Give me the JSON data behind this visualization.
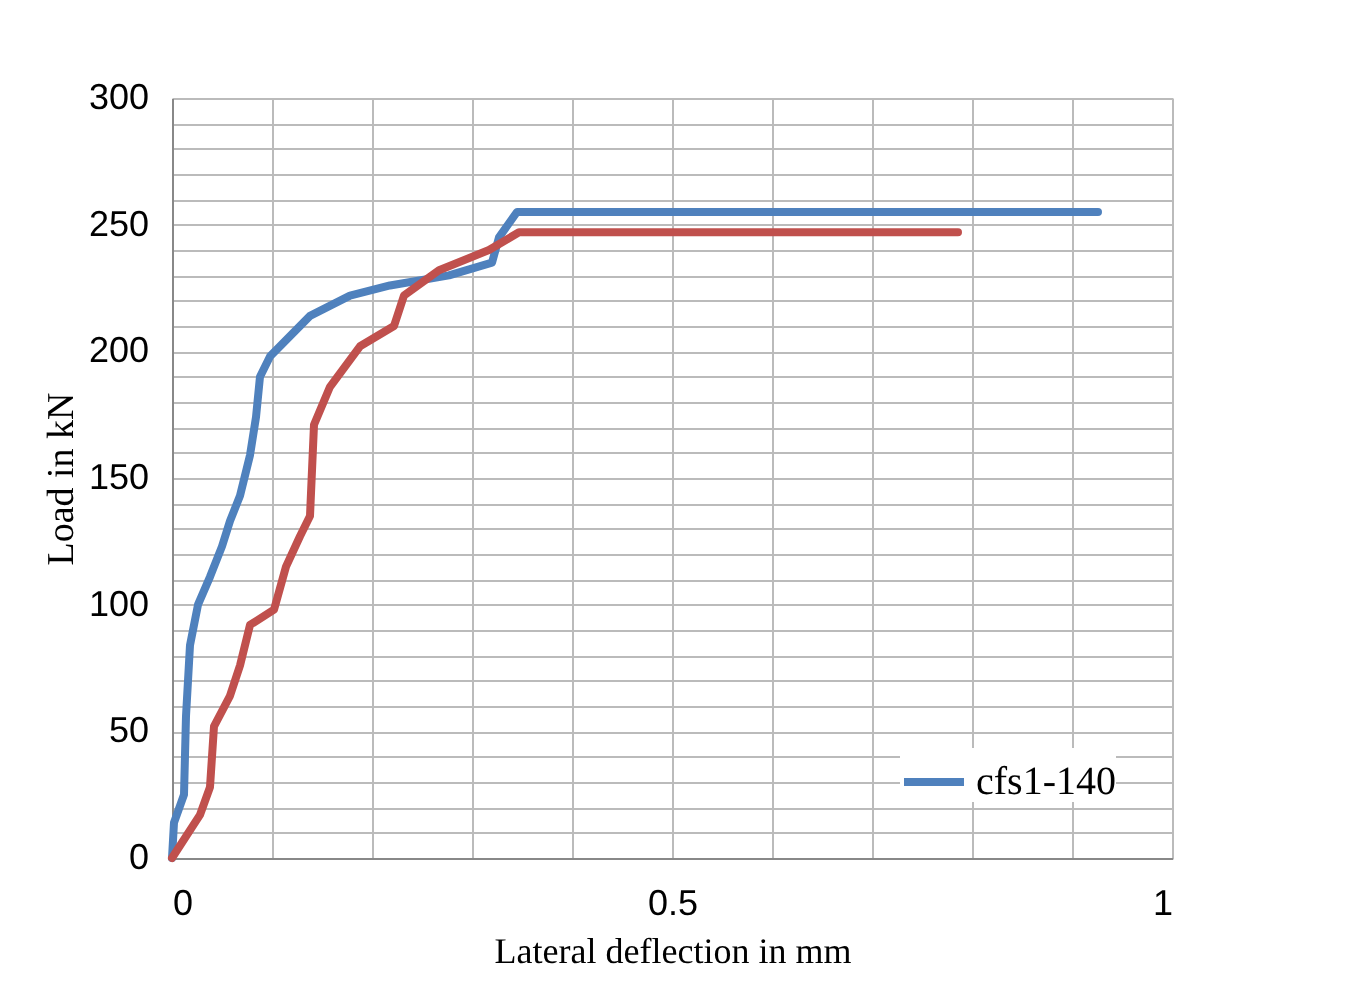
{
  "chart_data": {
    "type": "line",
    "xlabel": "Lateral deflection in mm",
    "ylabel": "Load in kN",
    "xlim": [
      0,
      1
    ],
    "ylim": [
      0,
      300
    ],
    "xticks": [
      0,
      {
        "value": 0.1,
        "label": null
      },
      {
        "value": 0.2,
        "label": null
      },
      {
        "value": 0.3,
        "label": null
      },
      {
        "value": 0.4,
        "label": null
      },
      0.5,
      {
        "value": 0.6,
        "label": null
      },
      {
        "value": 0.7,
        "label": null
      },
      {
        "value": 0.8,
        "label": null
      },
      {
        "value": 0.9,
        "label": null
      },
      1
    ],
    "yticks": [
      0,
      {
        "value": 10,
        "label": null
      },
      {
        "value": 20,
        "label": null
      },
      {
        "value": 30,
        "label": null
      },
      {
        "value": 40,
        "label": null
      },
      50,
      {
        "value": 60,
        "label": null
      },
      {
        "value": 70,
        "label": null
      },
      {
        "value": 80,
        "label": null
      },
      {
        "value": 90,
        "label": null
      },
      100,
      {
        "value": 110,
        "label": null
      },
      {
        "value": 120,
        "label": null
      },
      {
        "value": 130,
        "label": null
      },
      {
        "value": 140,
        "label": null
      },
      150,
      {
        "value": 160,
        "label": null
      },
      {
        "value": 170,
        "label": null
      },
      {
        "value": 180,
        "label": null
      },
      {
        "value": 190,
        "label": null
      },
      200,
      {
        "value": 210,
        "label": null
      },
      {
        "value": 220,
        "label": null
      },
      {
        "value": 230,
        "label": null
      },
      {
        "value": 240,
        "label": null
      },
      250,
      {
        "value": 260,
        "label": null
      },
      {
        "value": 270,
        "label": null
      },
      {
        "value": 280,
        "label": null
      },
      {
        "value": 290,
        "label": null
      },
      300
    ],
    "grid": true,
    "legend": "bottom right",
    "line_style": "solid",
    "marker": "none",
    "series": [
      {
        "name": "cfs1-140",
        "color": "#4f81bd",
        "x": [
          0,
          0.002,
          0.012,
          0.014,
          0.018,
          0.026,
          0.038,
          0.05,
          0.058,
          0.068,
          0.078,
          0.084,
          0.088,
          0.098,
          0.118,
          0.138,
          0.178,
          0.218,
          0.277,
          0.32,
          0.327,
          0.345,
          0.926
        ],
        "values": [
          0,
          14,
          25,
          56,
          84,
          100,
          111,
          123,
          133,
          143,
          159,
          174,
          190,
          198,
          206,
          214,
          222,
          226,
          230,
          235,
          245,
          255,
          255
        ]
      },
      {
        "color": "#c0504d",
        "x": [
          0,
          0.028,
          0.038,
          0.042,
          0.058,
          0.068,
          0.078,
          0.102,
          0.114,
          0.128,
          0.138,
          0.142,
          0.158,
          0.188,
          0.222,
          0.232,
          0.267,
          0.317,
          0.347,
          0.786
        ],
        "values": [
          0,
          17,
          28,
          52,
          64,
          76,
          92,
          98,
          115,
          127,
          135,
          171,
          186,
          202,
          210,
          222,
          232,
          240,
          247,
          247
        ]
      }
    ]
  }
}
